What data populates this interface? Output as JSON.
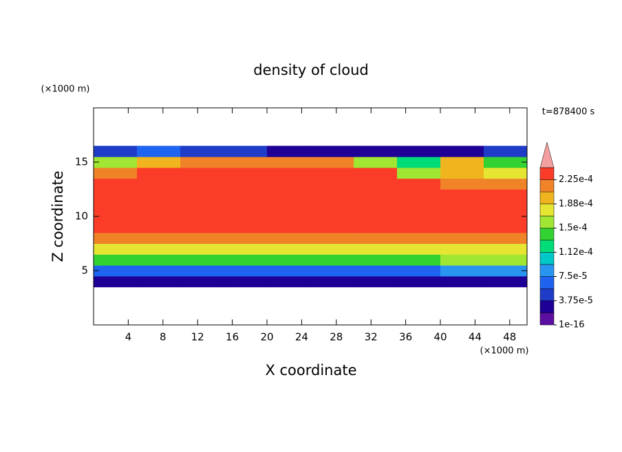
{
  "chart_data": {
    "type": "contour",
    "title": "density of cloud",
    "x_label": "X coordinate",
    "y_label": "Z coordinate",
    "x_unit": "(×1000 m)",
    "y_unit": "(×1000 m)",
    "time_label": "t=878400 s",
    "xlim": [
      0,
      50
    ],
    "ylim": [
      0,
      20
    ],
    "xticks": [
      4,
      8,
      12,
      16,
      20,
      24,
      28,
      32,
      36,
      40,
      44,
      48
    ],
    "yticks": [
      5,
      10,
      15
    ],
    "x_edges": [
      0,
      5,
      10,
      15,
      20,
      25,
      30,
      35,
      40,
      45,
      50
    ],
    "z_edges": [
      3.5,
      4.5,
      5.5,
      6.5,
      7.5,
      8.5,
      9.5,
      10.5,
      11.5,
      12.5,
      13.5,
      14.5,
      15.5,
      16.5
    ],
    "values": [
      [
        2e-05,
        2e-05,
        2e-05,
        2e-05,
        2e-05,
        2e-05,
        2e-05,
        2e-05,
        2e-05,
        2e-05
      ],
      [
        7e-05,
        7e-05,
        7e-05,
        7e-05,
        7e-05,
        7e-05,
        7e-05,
        7e-05,
        8e-05,
        8e-05
      ],
      [
        0.00014,
        0.00014,
        0.00014,
        0.00014,
        0.00014,
        0.00014,
        0.00014,
        0.00014,
        0.00015,
        0.00015
      ],
      [
        0.000185,
        0.000185,
        0.000185,
        0.000185,
        0.000185,
        0.000185,
        0.000185,
        0.000185,
        0.000185,
        0.000185
      ],
      [
        0.000215,
        0.000215,
        0.000215,
        0.000215,
        0.000215,
        0.000215,
        0.000215,
        0.000215,
        0.000215,
        0.000215
      ],
      [
        0.00024,
        0.00024,
        0.00024,
        0.00024,
        0.00024,
        0.00024,
        0.00024,
        0.00024,
        0.00024,
        0.00024
      ],
      [
        0.00024,
        0.00024,
        0.00024,
        0.00024,
        0.00024,
        0.00024,
        0.00024,
        0.00024,
        0.00024,
        0.00024
      ],
      [
        0.00024,
        0.00024,
        0.00024,
        0.00024,
        0.00024,
        0.00024,
        0.00024,
        0.00024,
        0.00024,
        0.00024
      ],
      [
        0.00024,
        0.00024,
        0.00024,
        0.00024,
        0.00024,
        0.00024,
        0.00024,
        0.00024,
        0.00024,
        0.00024
      ],
      [
        0.00024,
        0.00024,
        0.00024,
        0.00024,
        0.00024,
        0.00024,
        0.00024,
        0.00023,
        0.00022,
        0.00021
      ],
      [
        0.00021,
        0.000235,
        0.000235,
        0.000235,
        0.000235,
        0.00023,
        0.00023,
        0.00016,
        0.0002,
        0.00017
      ],
      [
        0.00015,
        0.0002,
        0.00022,
        0.00022,
        0.00022,
        0.00021,
        0.00015,
        0.00012,
        0.0002,
        0.00014
      ],
      [
        5e-05,
        6e-05,
        4e-05,
        4e-05,
        3e-05,
        3e-05,
        2e-05,
        2e-05,
        3e-05,
        4e-05
      ]
    ],
    "levels": [
      1e-16,
      1.875e-05,
      3.75e-05,
      5.625e-05,
      7.5e-05,
      9.375e-05,
      0.0001125,
      0.00013125,
      0.00015,
      0.00016875,
      0.0001875,
      0.00020625,
      0.000225,
      0.00024375
    ],
    "colors": [
      "#5a0fa0",
      "#1e0096",
      "#1e3cc8",
      "#1e64f0",
      "#2896f0",
      "#00c8c8",
      "#00dc78",
      "#32d232",
      "#a0e632",
      "#e6e632",
      "#f0b41e",
      "#f08228",
      "#fa3c28"
    ],
    "overflow_color": "#f4a0a0",
    "cbticks": [
      1e-16,
      {
        "value": 3.75e-05,
        "label": "3.75e-5"
      },
      {
        "value": 7.5e-05,
        "label": "7.5e-5"
      },
      {
        "value": 0.0001125,
        "label": "1.12e-4"
      },
      {
        "value": 0.00015,
        "label": "1.5e-4"
      },
      {
        "value": 0.0001875,
        "label": "1.88e-4"
      },
      {
        "value": 0.000225,
        "label": "2.25e-4"
      }
    ]
  }
}
